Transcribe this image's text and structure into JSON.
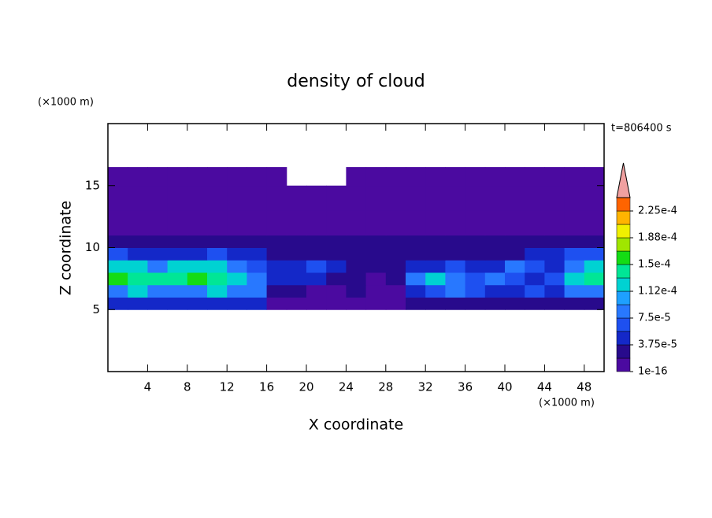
{
  "chart_data": {
    "type": "contour",
    "title": "density of cloud",
    "x_label": "X coordinate",
    "y_label": "Z coordinate",
    "x_unit": "(×1000 m)",
    "y_unit": "(×1000 m)",
    "time_label": "t=806400 s",
    "xlim": [
      0,
      50
    ],
    "ylim": [
      0,
      20
    ],
    "xticks": [
      4,
      8,
      12,
      16,
      20,
      24,
      28,
      32,
      36,
      40,
      44,
      48
    ],
    "yticks": [
      5,
      10,
      15
    ],
    "field": {
      "xedges": [
        0,
        2,
        4,
        6,
        8,
        10,
        12,
        14,
        16,
        18,
        20,
        22,
        24,
        26,
        28,
        30,
        32,
        34,
        36,
        38,
        40,
        42,
        44,
        46,
        48,
        50
      ],
      "zedges": [
        5,
        6,
        7,
        8,
        9,
        10,
        11,
        13,
        15,
        16.5
      ],
      "values": [
        [
          5e-05,
          5e-05,
          5e-05,
          5e-05,
          5e-05,
          5e-05,
          5e-05,
          5e-05,
          1e-05,
          1e-05,
          1e-05,
          1e-05,
          1e-05,
          1e-05,
          1e-05,
          3e-05,
          3e-05,
          3e-05,
          3e-05,
          3e-05,
          3e-05,
          3e-05,
          3e-05,
          3e-05,
          3e-05
        ],
        [
          9e-05,
          0.00012,
          9e-05,
          9e-05,
          9e-05,
          0.00012,
          9e-05,
          9e-05,
          3e-05,
          3e-05,
          1e-05,
          1e-05,
          3e-05,
          1e-05,
          1e-05,
          5e-05,
          7e-05,
          9e-05,
          7e-05,
          5e-05,
          5e-05,
          7e-05,
          5e-05,
          9e-05,
          9e-05
        ],
        [
          0.00016,
          0.00014,
          0.00014,
          0.00014,
          0.00016,
          0.00014,
          0.00012,
          9e-05,
          5e-05,
          5e-05,
          5e-05,
          3e-05,
          3e-05,
          1e-05,
          3e-05,
          9e-05,
          0.00012,
          9e-05,
          7e-05,
          9e-05,
          7e-05,
          5e-05,
          7e-05,
          0.00012,
          0.00014
        ],
        [
          0.00012,
          0.00012,
          9e-05,
          0.00012,
          0.00012,
          0.00012,
          9e-05,
          7e-05,
          5e-05,
          5e-05,
          7e-05,
          5e-05,
          3e-05,
          3e-05,
          3e-05,
          5e-05,
          5e-05,
          7e-05,
          5e-05,
          5e-05,
          9e-05,
          7e-05,
          5e-05,
          9e-05,
          0.00012
        ],
        [
          7e-05,
          5e-05,
          5e-05,
          5e-05,
          5e-05,
          7e-05,
          5e-05,
          5e-05,
          3e-05,
          3e-05,
          3e-05,
          3e-05,
          3e-05,
          3e-05,
          3e-05,
          3e-05,
          3e-05,
          3e-05,
          3e-05,
          3e-05,
          3e-05,
          5e-05,
          5e-05,
          7e-05,
          7e-05
        ],
        [
          3e-05,
          3e-05,
          3e-05,
          3e-05,
          3e-05,
          3e-05,
          3e-05,
          3e-05,
          3e-05,
          3e-05,
          3e-05,
          3e-05,
          3e-05,
          3e-05,
          3e-05,
          3e-05,
          3e-05,
          3e-05,
          3e-05,
          3e-05,
          3e-05,
          3e-05,
          3e-05,
          3e-05,
          3e-05
        ],
        [
          1e-05,
          1e-05,
          1e-05,
          1e-05,
          1e-05,
          1e-05,
          1e-05,
          1e-05,
          1e-05,
          1e-05,
          1e-05,
          1e-05,
          1e-05,
          1e-05,
          1e-05,
          1e-05,
          1e-05,
          1e-05,
          1e-05,
          1e-05,
          1e-05,
          1e-05,
          1e-05,
          1e-05,
          1e-05
        ],
        [
          1e-05,
          1e-05,
          1e-05,
          1e-05,
          1e-05,
          1e-05,
          1e-05,
          1e-05,
          1e-05,
          1e-05,
          1e-05,
          1e-05,
          1e-05,
          1e-05,
          1e-05,
          1e-05,
          1e-05,
          1e-05,
          1e-05,
          1e-05,
          1e-05,
          1e-05,
          1e-05,
          1e-05,
          1e-05
        ],
        [
          1e-05,
          1e-05,
          1e-05,
          1e-05,
          1e-05,
          1e-05,
          1e-05,
          1e-05,
          1e-05,
          null,
          null,
          null,
          1e-05,
          1e-05,
          1e-05,
          1e-05,
          1e-05,
          1e-05,
          1e-05,
          1e-05,
          1e-05,
          1e-05,
          1e-05,
          1e-05,
          1e-05
        ]
      ]
    },
    "levels": [
      1e-16,
      1.875e-05,
      3.75e-05,
      5.625e-05,
      7.5e-05,
      9.375e-05,
      0.000112,
      0.00013125,
      0.00015,
      0.00016875,
      0.000188,
      0.00020625,
      0.000225,
      0.00024375
    ],
    "colors": [
      "#4b0aa0",
      "#280a8c",
      "#1428c8",
      "#1e50f0",
      "#2878ff",
      "#1ea0ff",
      "#00d2d2",
      "#00e696",
      "#14dc14",
      "#a0e600",
      "#f0f000",
      "#ffb400",
      "#ff6400"
    ],
    "extend_color": "#f0a0a0",
    "level_ticks": [
      {
        "value": 1e-16,
        "label": "1e-16"
      },
      {
        "value": 3.75e-05,
        "label": "3.75e-5"
      },
      {
        "value": 7.5e-05,
        "label": "7.5e-5"
      },
      {
        "value": 0.000112,
        "label": "1.12e-4"
      },
      {
        "value": 0.00015,
        "label": "1.5e-4"
      },
      {
        "value": 0.000188,
        "label": "1.88e-4"
      },
      {
        "value": 0.000225,
        "label": "2.25e-4"
      }
    ]
  }
}
